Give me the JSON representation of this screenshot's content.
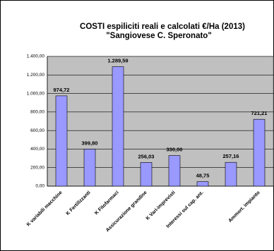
{
  "chart_data": {
    "type": "bar",
    "title": "COSTI espiliciti  reali e calcolati €/Ha (2013)",
    "subtitle": "\"Sangiovese C. Speronato\"",
    "categories": [
      "K variabili macchine",
      "K  Fertilizzanti",
      "K Fitofarmaci",
      "Assicurazione grandine",
      "K Vari-imprevisti",
      "Interessi sul cap. ant.",
      null,
      "Ammort. impianto"
    ],
    "values": [
      974.72,
      399.8,
      1289.59,
      256.03,
      330.0,
      48.75,
      257.16,
      721.21
    ],
    "value_labels": [
      "974,72",
      "399,80",
      "1.289,59",
      "256,03",
      "330,00",
      "48,75",
      "257,16",
      "721,21"
    ],
    "color": "#9999ff",
    "ylim": [
      0,
      1400
    ],
    "yticks": [
      {
        "value": 0,
        "label": "0,00"
      },
      {
        "value": 200,
        "label": "200,00"
      },
      {
        "value": 400,
        "label": "400,00"
      },
      {
        "value": 600,
        "label": "600,00"
      },
      {
        "value": 800,
        "label": "800,00"
      },
      {
        "value": 1000,
        "label": "1.000,00"
      },
      {
        "value": 1200,
        "label": "1.200,00"
      },
      {
        "value": 1400,
        "label": "1.400,00"
      }
    ],
    "grid": true
  }
}
